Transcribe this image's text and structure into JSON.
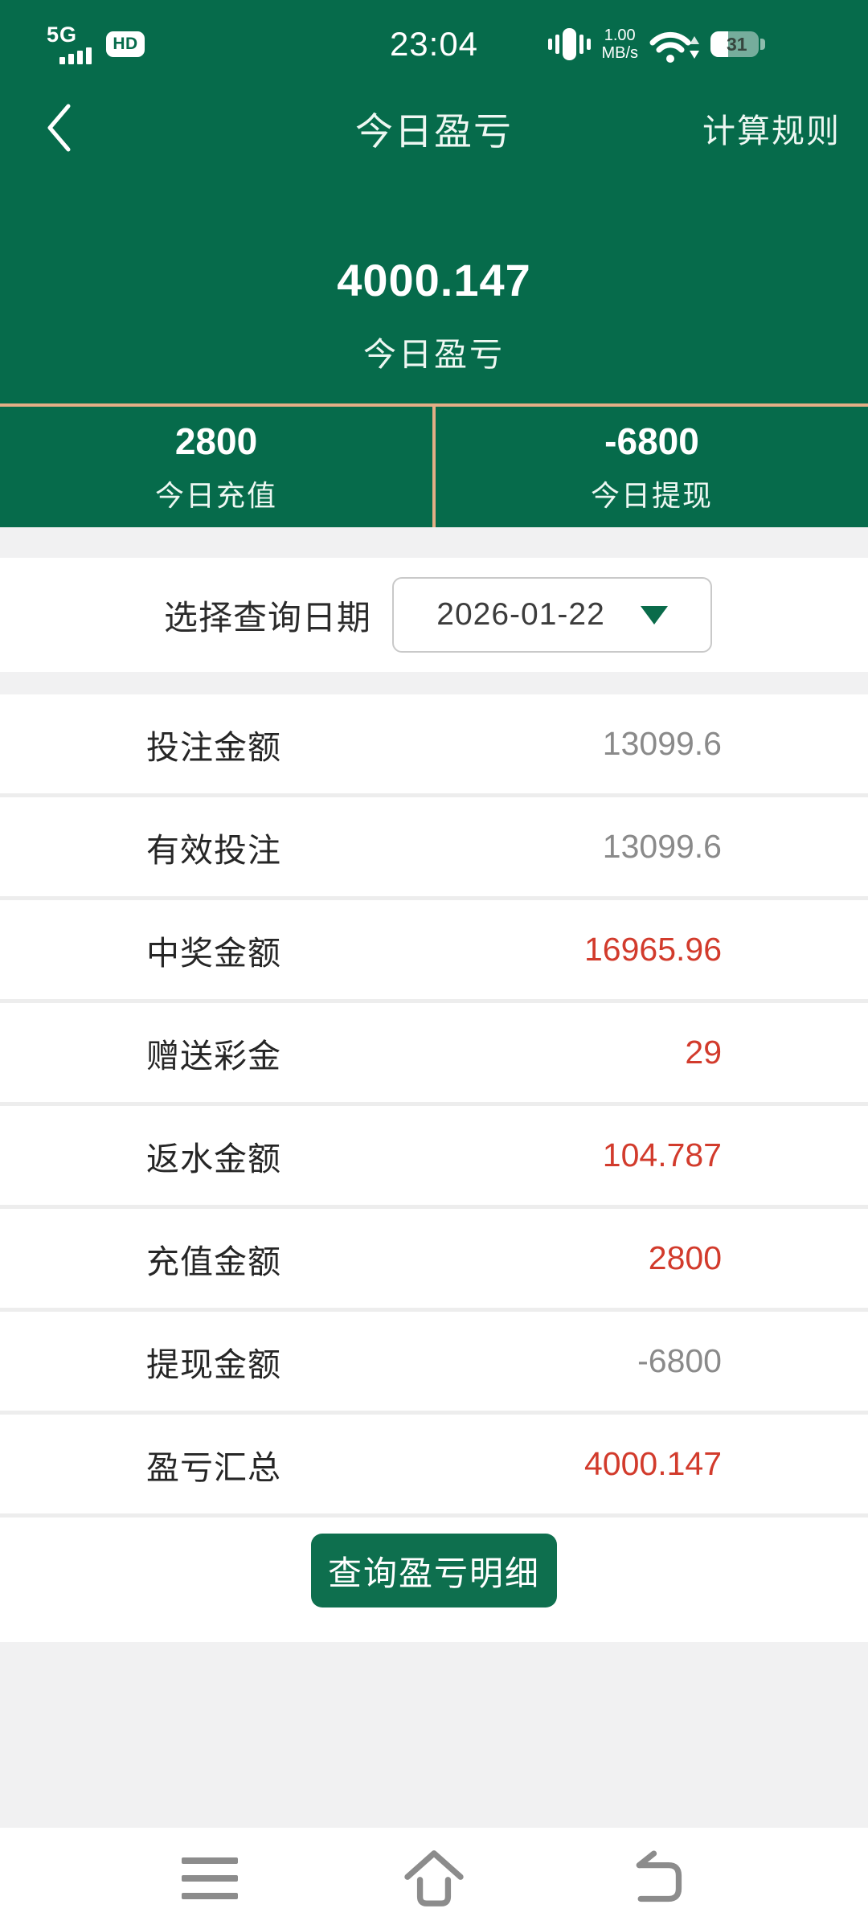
{
  "status_bar": {
    "network_label": "5G",
    "hd_label": "HD",
    "time": "23:04",
    "speed_value": "1.00",
    "speed_unit": "MB/s",
    "battery_percent": "31"
  },
  "header": {
    "title": "今日盈亏",
    "action_label": "计算规则"
  },
  "hero": {
    "amount": "4000.147",
    "caption": "今日盈亏"
  },
  "summary": {
    "deposit": {
      "value": "2800",
      "label": "今日充值"
    },
    "withdraw": {
      "value": "-6800",
      "label": "今日提现"
    }
  },
  "date_picker": {
    "label": "选择查询日期",
    "value": "2026-01-22"
  },
  "rows": [
    {
      "label": "投注金额",
      "value": "13099.6",
      "color": "gray"
    },
    {
      "label": "有效投注",
      "value": "13099.6",
      "color": "gray"
    },
    {
      "label": "中奖金额",
      "value": "16965.96",
      "color": "red"
    },
    {
      "label": "赠送彩金",
      "value": "29",
      "color": "red"
    },
    {
      "label": "返水金额",
      "value": "104.787",
      "color": "red"
    },
    {
      "label": "充值金额",
      "value": "2800",
      "color": "red"
    },
    {
      "label": "提现金额",
      "value": "-6800",
      "color": "gray"
    },
    {
      "label": "盈亏汇总",
      "value": "4000.147",
      "color": "red"
    }
  ],
  "action_button": {
    "label": "查询盈亏明细"
  },
  "nav": {
    "icons": [
      "recent-apps-icon",
      "home-icon",
      "back-icon"
    ]
  },
  "colors": {
    "primary_green": "#066B4B",
    "button_green": "#0E6F4E",
    "divider_tan": "#E4AE86",
    "value_red": "#D23B2C",
    "value_gray": "#8A8A8A",
    "page_gray": "#F1F1F2"
  }
}
